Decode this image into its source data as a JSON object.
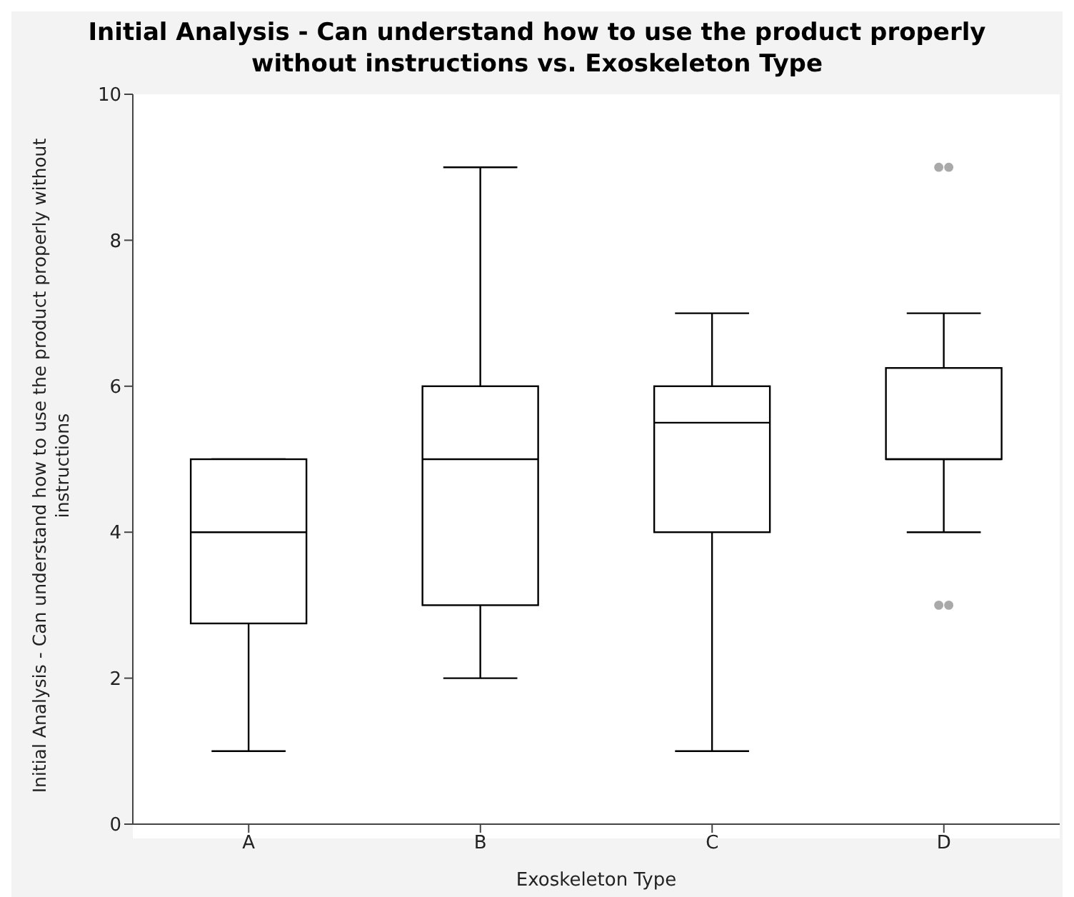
{
  "chart_data": {
    "type": "box",
    "title": "Initial Analysis - Can understand how to use the product properly without instructions vs. Exoskeleton Type",
    "xlabel": "Exoskeleton Type",
    "ylabel": "Initial Analysis - Can understand how to use the product properly without instructions",
    "categories": [
      "A",
      "B",
      "C",
      "D"
    ],
    "boxes": [
      {
        "low": 1,
        "q1": 2.75,
        "median": 4,
        "q3": 5,
        "high": 5
      },
      {
        "low": 2,
        "q1": 3,
        "median": 5,
        "q3": 6,
        "high": 9
      },
      {
        "low": 1,
        "q1": 4,
        "median": 5.5,
        "q3": 6,
        "high": 7
      },
      {
        "low": 4,
        "q1": 5,
        "median": 5,
        "q3": 6.25,
        "high": 7,
        "outliers": [
          3,
          3,
          9,
          9
        ]
      }
    ],
    "ylim": [
      0,
      10
    ],
    "yticks": [
      0,
      2,
      4,
      6,
      8,
      10
    ]
  }
}
